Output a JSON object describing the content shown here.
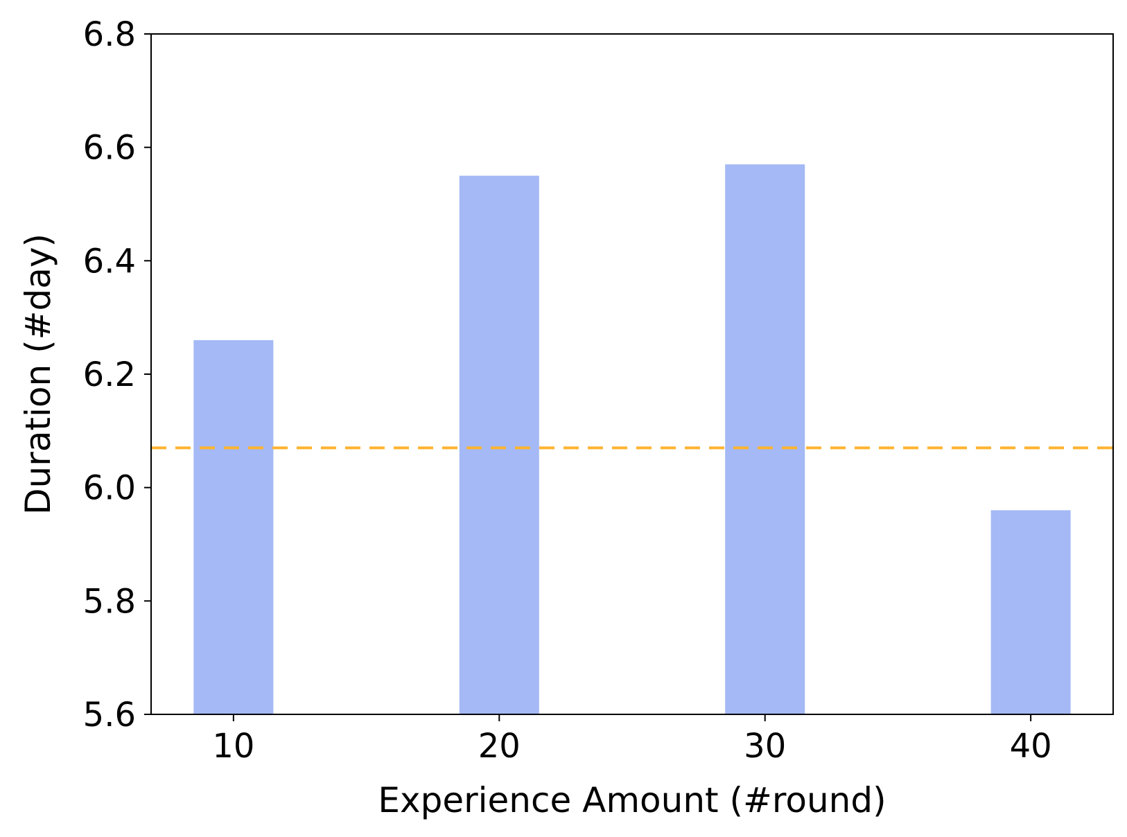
{
  "chart_data": {
    "type": "bar",
    "title": "",
    "xlabel": "Experience Amount (#round)",
    "ylabel": "Duration (#day)",
    "categories": [
      "10",
      "20",
      "30",
      "40"
    ],
    "x": [
      10,
      20,
      30,
      40
    ],
    "values": [
      6.26,
      6.55,
      6.57,
      5.96
    ],
    "xlim": [
      6.9,
      43.1
    ],
    "ylim": [
      5.6,
      6.8
    ],
    "yticks": [
      5.6,
      5.8,
      6.0,
      6.2,
      6.4,
      6.6,
      6.8
    ],
    "ytick_labels": [
      "5.6",
      "5.8",
      "6.0",
      "6.2",
      "6.4",
      "6.6",
      "6.8"
    ],
    "xtick_labels": [
      "10",
      "20",
      "30",
      "40"
    ],
    "reference_line": {
      "y": 6.07,
      "style": "dashed",
      "color": "#FFB330"
    },
    "bar_width": 3,
    "colors": {
      "bar": "#A4B9F5",
      "reference_line": "#FFB330",
      "axes": "#000000"
    },
    "grid": false,
    "legend": "none"
  }
}
